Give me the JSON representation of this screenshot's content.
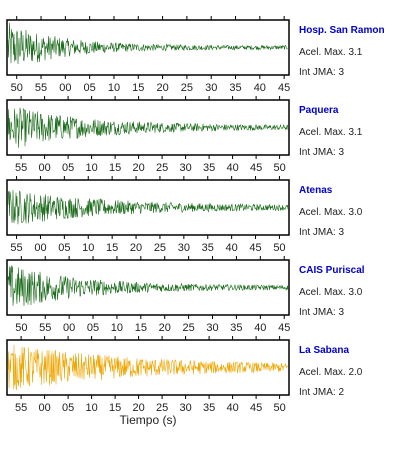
{
  "chart_data": [
    {
      "type": "line",
      "station": "Hosp. San Ramon",
      "accel_label": "Acel. Max. 3.1",
      "int_label": "Int JMA: 3",
      "color": "#1a6b1a",
      "tick_labels": [
        "50",
        "55",
        "00",
        "05",
        "10",
        "15",
        "20",
        "25",
        "30",
        "35",
        "40",
        "45"
      ],
      "xlim": [
        48,
        106
      ],
      "tick_start": 50,
      "peak": 1.0,
      "decay": 0.055
    },
    {
      "type": "line",
      "station": "Paquera",
      "accel_label": "Acel. Max. 3.1",
      "int_label": "Int JMA: 3",
      "color": "#1a6b1a",
      "tick_labels": [
        "55",
        "00",
        "05",
        "10",
        "15",
        "20",
        "25",
        "30",
        "35",
        "40",
        "45",
        "50"
      ],
      "xlim": [
        52,
        112
      ],
      "tick_start": 55,
      "peak": 0.9,
      "decay": 0.035
    },
    {
      "type": "line",
      "station": "Atenas",
      "accel_label": "Acel. Max. 3.0",
      "int_label": "Int JMA: 3",
      "color": "#1a6b1a",
      "tick_labels": [
        "55",
        "00",
        "05",
        "10",
        "15",
        "20",
        "25",
        "30",
        "35",
        "40",
        "45",
        "50"
      ],
      "xlim": [
        53,
        112
      ],
      "tick_start": 55,
      "peak": 0.75,
      "decay": 0.03
    },
    {
      "type": "line",
      "station": "CAIS Puriscal",
      "accel_label": "Acel. Max. 3.0",
      "int_label": "Int JMA: 3",
      "color": "#1a6b1a",
      "tick_labels": [
        "50",
        "55",
        "00",
        "05",
        "10",
        "15",
        "20",
        "25",
        "30",
        "35",
        "40",
        "45"
      ],
      "xlim": [
        47,
        106
      ],
      "tick_start": 50,
      "peak": 0.95,
      "decay": 0.04
    },
    {
      "type": "line",
      "station": "La Sabana",
      "accel_label": "Acel. Max. 2.0",
      "int_label": "Int JMA: 2",
      "color": "#f0a500",
      "tick_labels": [
        "55",
        "00",
        "05",
        "10",
        "15",
        "20",
        "25",
        "30",
        "35",
        "40",
        "45",
        "50"
      ],
      "xlim": [
        52,
        112
      ],
      "tick_start": 55,
      "peak": 0.95,
      "decay": 0.022
    }
  ],
  "xlabel": "Tiempo (s)",
  "station_color": "#0000cc"
}
